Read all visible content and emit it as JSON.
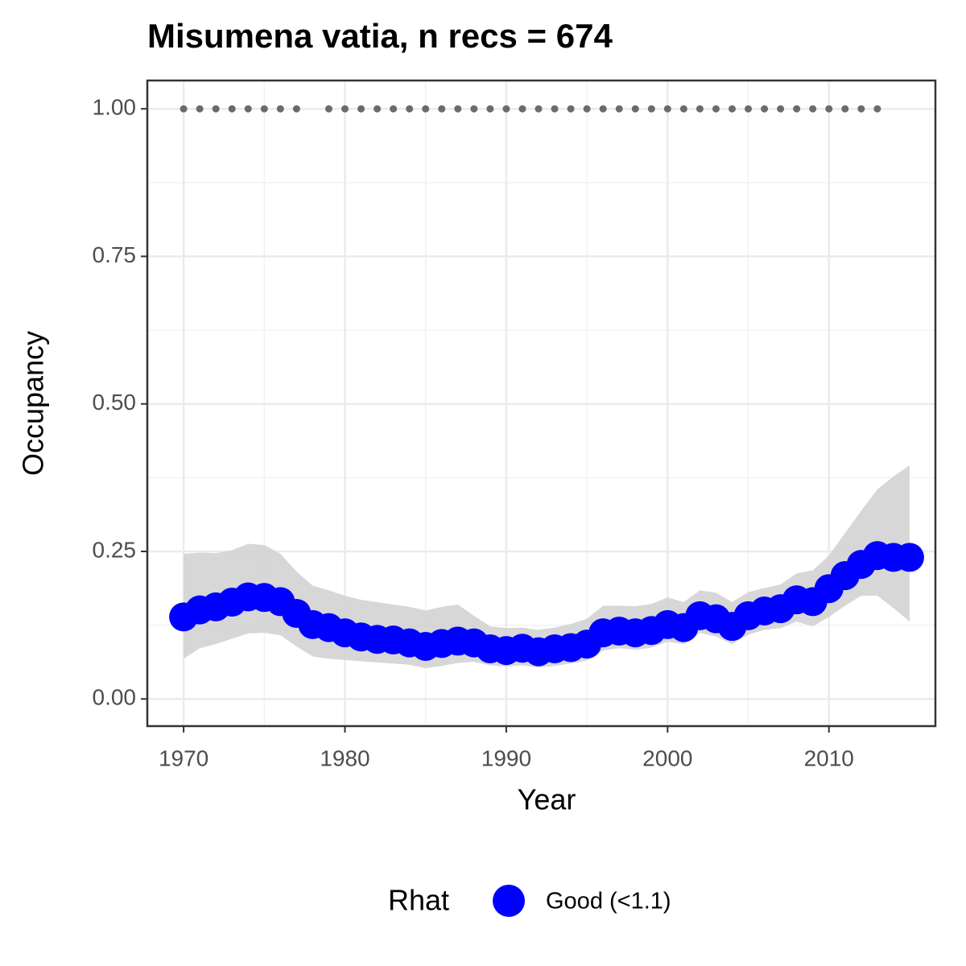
{
  "chart_data": {
    "type": "line",
    "title": "Misumena vatia, n recs = 674",
    "x_label": "Year",
    "y_label": "Occupancy",
    "x": [
      1970,
      1971,
      1972,
      1973,
      1974,
      1975,
      1976,
      1977,
      1978,
      1979,
      1980,
      1981,
      1982,
      1983,
      1984,
      1985,
      1986,
      1987,
      1988,
      1989,
      1990,
      1991,
      1992,
      1993,
      1994,
      1995,
      1996,
      1997,
      1998,
      1999,
      2000,
      2001,
      2002,
      2003,
      2004,
      2005,
      2006,
      2007,
      2008,
      2009,
      2010,
      2011,
      2012,
      2013,
      2014,
      2015
    ],
    "series": [
      {
        "name": "Good (<1.1)",
        "color": "#0000ff",
        "values": [
          0.139,
          0.151,
          0.156,
          0.164,
          0.173,
          0.172,
          0.165,
          0.145,
          0.126,
          0.121,
          0.112,
          0.105,
          0.101,
          0.1,
          0.095,
          0.089,
          0.094,
          0.098,
          0.095,
          0.085,
          0.082,
          0.086,
          0.08,
          0.085,
          0.087,
          0.093,
          0.112,
          0.115,
          0.112,
          0.116,
          0.126,
          0.121,
          0.141,
          0.136,
          0.123,
          0.141,
          0.149,
          0.153,
          0.168,
          0.165,
          0.187,
          0.209,
          0.228,
          0.243,
          0.24,
          0.24
        ]
      }
    ],
    "band": {
      "color": "#d3d3d3",
      "lower": [
        0.068,
        0.086,
        0.093,
        0.102,
        0.111,
        0.112,
        0.108,
        0.089,
        0.072,
        0.068,
        0.066,
        0.064,
        0.062,
        0.06,
        0.058,
        0.052,
        0.056,
        0.061,
        0.063,
        0.057,
        0.055,
        0.057,
        0.053,
        0.056,
        0.06,
        0.065,
        0.082,
        0.086,
        0.083,
        0.087,
        0.097,
        0.093,
        0.112,
        0.106,
        0.093,
        0.109,
        0.117,
        0.12,
        0.131,
        0.123,
        0.139,
        0.158,
        0.175,
        0.175,
        0.154,
        0.131
      ],
      "upper": [
        0.246,
        0.248,
        0.247,
        0.252,
        0.263,
        0.261,
        0.246,
        0.216,
        0.192,
        0.184,
        0.175,
        0.168,
        0.164,
        0.16,
        0.156,
        0.15,
        0.156,
        0.16,
        0.141,
        0.123,
        0.12,
        0.121,
        0.117,
        0.121,
        0.127,
        0.136,
        0.158,
        0.158,
        0.157,
        0.161,
        0.172,
        0.164,
        0.184,
        0.18,
        0.164,
        0.181,
        0.188,
        0.194,
        0.213,
        0.218,
        0.243,
        0.281,
        0.319,
        0.355,
        0.377,
        0.396
      ]
    },
    "detections": {
      "color": "#6b6b6b",
      "x": [
        1970,
        1971,
        1972,
        1973,
        1974,
        1975,
        1976,
        1977,
        1979,
        1980,
        1981,
        1982,
        1983,
        1984,
        1985,
        1986,
        1987,
        1988,
        1989,
        1990,
        1991,
        1992,
        1993,
        1994,
        1995,
        1996,
        1997,
        1998,
        1999,
        2000,
        2001,
        2002,
        2003,
        2004,
        2005,
        2006,
        2007,
        2008,
        2009,
        2010,
        2011,
        2012,
        2013
      ],
      "values": [
        1,
        1,
        1,
        1,
        1,
        1,
        1,
        1,
        1,
        1,
        1,
        1,
        1,
        1,
        1,
        1,
        1,
        1,
        1,
        1,
        1,
        1,
        1,
        1,
        1,
        1,
        1,
        1,
        1,
        1,
        1,
        1,
        1,
        1,
        1,
        1,
        1,
        1,
        1,
        1,
        1,
        1,
        1
      ]
    },
    "xlim": [
      1967.75,
      2016.6
    ],
    "ylim": [
      -0.046,
      1.048
    ],
    "xticks": [
      1970,
      1980,
      1990,
      2000,
      2010
    ],
    "yticks": [
      {
        "value": 0,
        "label": "0.00"
      },
      {
        "value": 0.25,
        "label": "0.25"
      },
      {
        "value": 0.5,
        "label": "0.50"
      },
      {
        "value": 0.75,
        "label": "0.75"
      },
      {
        "value": 1,
        "label": "1.00"
      }
    ],
    "grid": true,
    "legend_title": "Rhat",
    "legend_position": "bottom"
  }
}
